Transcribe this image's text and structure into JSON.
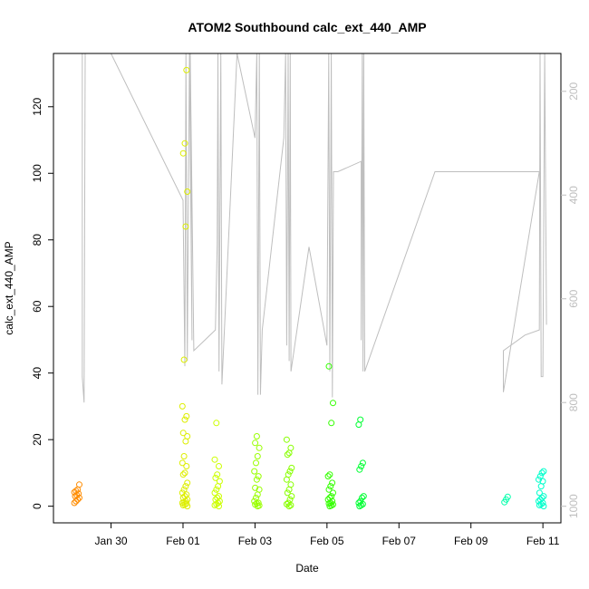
{
  "chart_data": {
    "type": "scatter",
    "title": "ATOM2 Southbound calc_ext_440_AMP",
    "xlabel": "Date",
    "ylabel": "calc_ext_440_AMP",
    "x_tick_labels": [
      "Jan 30",
      "Feb 01",
      "Feb 03",
      "Feb 05",
      "Feb 07",
      "Feb 09",
      "Feb 11"
    ],
    "x_tick_days": [
      30,
      32,
      34,
      36,
      38,
      40,
      42
    ],
    "xlim_days": [
      28.4,
      42.5
    ],
    "ylim": [
      -5,
      136
    ],
    "y_ticks": [
      0,
      20,
      40,
      60,
      80,
      100,
      120
    ],
    "right_axis": {
      "description": "depth",
      "ticks": [
        200,
        400,
        600,
        800,
        1000
      ],
      "ylim_reversed": [
        1032,
        127
      ],
      "color": "#bebebe"
    },
    "grid": false,
    "legend": "none",
    "point_colors": {
      "jan29": "#ff8c00",
      "feb01": "#ddee00",
      "feb02": "#ccff00",
      "feb03": "#99ff00",
      "feb04": "#88ff00",
      "feb05": "#33ff00",
      "feb06": "#00ff33",
      "feb10": "#00ffaa",
      "feb11": "#00ffcc"
    },
    "point_clusters": [
      {
        "color_key": "jan29",
        "day": 29.05,
        "values": [
          1.0,
          1.5,
          2.0,
          2.5,
          3.0,
          3.3,
          3.8,
          4.2,
          4.6,
          5.0,
          6.5
        ]
      },
      {
        "color_key": "feb01",
        "day": 32.05,
        "values": [
          0,
          0.3,
          0.5,
          0.8,
          1.0,
          1.2,
          1.5,
          2.0,
          2.5,
          3.0,
          3.5,
          4.0,
          5.0,
          6.0,
          7.0,
          9.5,
          10.0,
          12.0,
          13.0,
          15.0,
          19.5,
          21.0,
          22.0,
          26.0,
          27.0,
          30.0,
          44.0,
          84.0,
          94.5,
          106.0,
          109.0,
          131.0
        ]
      },
      {
        "color_key": "feb02",
        "day": 32.95,
        "values": [
          0,
          0.3,
          0.6,
          1.0,
          1.5,
          2.0,
          2.5,
          3.0,
          4.0,
          5.0,
          6.0,
          7.5,
          8.5,
          9.5,
          12.0,
          14.0,
          25.0
        ]
      },
      {
        "color_key": "feb03",
        "day": 34.05,
        "values": [
          0,
          0.2,
          0.5,
          0.8,
          1.0,
          1.5,
          2.5,
          3.5,
          5.0,
          5.5,
          8.0,
          9.0,
          10.5,
          13.0,
          15.0,
          17.5,
          19.0,
          21.0
        ]
      },
      {
        "color_key": "feb04",
        "day": 34.95,
        "values": [
          0,
          0.3,
          0.6,
          1.0,
          2.0,
          3.0,
          4.0,
          5.0,
          6.5,
          8.0,
          9.5,
          10.5,
          11.5,
          15.5,
          16.0,
          17.5,
          20.0
        ]
      },
      {
        "color_key": "feb05",
        "day": 36.1,
        "values": [
          0,
          0.2,
          0.5,
          0.8,
          1.0,
          1.5,
          2.0,
          2.5,
          3.0,
          4.0,
          5.0,
          6.0,
          7.0,
          9.0,
          9.5,
          25.0,
          31.0,
          42.0
        ]
      },
      {
        "color_key": "feb06",
        "day": 36.95,
        "values": [
          0,
          0.3,
          0.6,
          1.0,
          1.5,
          2.5,
          3.0,
          11.0,
          12.0,
          13.0,
          24.5,
          26.0
        ]
      },
      {
        "color_key": "feb10",
        "day": 41.0,
        "values": [
          1.2,
          2.0,
          2.8
        ]
      },
      {
        "color_key": "feb11",
        "day": 41.95,
        "values": [
          0,
          0.3,
          0.6,
          1.0,
          1.5,
          2.0,
          2.5,
          3.0,
          4.0,
          6.0,
          7.5,
          8.0,
          9.0,
          10.0,
          10.5
        ]
      }
    ],
    "depth_trace": {
      "color": "#bebebe",
      "points": [
        [
          29.2,
          127
        ],
        [
          29.2,
          750
        ],
        [
          29.25,
          800
        ],
        [
          29.28,
          127
        ],
        [
          30.0,
          127
        ],
        [
          32.0,
          410
        ],
        [
          32.05,
          730
        ],
        [
          32.08,
          127
        ],
        [
          32.12,
          720
        ],
        [
          32.18,
          127
        ],
        [
          32.25,
          680
        ],
        [
          32.2,
          127
        ],
        [
          32.3,
          700
        ],
        [
          32.9,
          660
        ],
        [
          32.95,
          495
        ],
        [
          32.97,
          127
        ],
        [
          33.0,
          740
        ],
        [
          33.05,
          127
        ],
        [
          33.08,
          765
        ],
        [
          33.5,
          127
        ],
        [
          34.0,
          290
        ],
        [
          34.05,
          127
        ],
        [
          34.08,
          785
        ],
        [
          34.12,
          127
        ],
        [
          34.15,
          785
        ],
        [
          34.2,
          660
        ],
        [
          34.8,
          290
        ],
        [
          34.85,
          127
        ],
        [
          34.88,
          690
        ],
        [
          34.92,
          127
        ],
        [
          34.95,
          720
        ],
        [
          34.98,
          127
        ],
        [
          35.0,
          740
        ],
        [
          35.5,
          500
        ],
        [
          36.0,
          690
        ],
        [
          36.05,
          127
        ],
        [
          36.08,
          740
        ],
        [
          36.12,
          127
        ],
        [
          36.15,
          790
        ],
        [
          36.18,
          355
        ],
        [
          36.3,
          355
        ],
        [
          36.95,
          335
        ],
        [
          36.95,
          680
        ],
        [
          36.98,
          127
        ],
        [
          37.0,
          740
        ],
        [
          37.02,
          127
        ],
        [
          37.05,
          740
        ],
        [
          39.0,
          355
        ],
        [
          41.9,
          355
        ],
        [
          40.9,
          780
        ],
        [
          40.9,
          700
        ],
        [
          41.5,
          670
        ],
        [
          41.9,
          660
        ],
        [
          41.92,
          127
        ],
        [
          41.95,
          750
        ],
        [
          42.0,
          750
        ],
        [
          42.05,
          127
        ],
        [
          42.1,
          650
        ]
      ]
    }
  }
}
